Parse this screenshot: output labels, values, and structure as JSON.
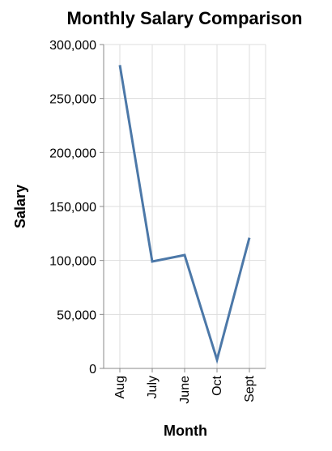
{
  "chart_data": {
    "type": "line",
    "title": "Monthly Salary Comparison",
    "xlabel": "Month",
    "ylabel": "Salary",
    "categories": [
      "Aug",
      "July",
      "June",
      "Oct",
      "Sept"
    ],
    "values": [
      281000,
      99000,
      105000,
      8000,
      121000
    ],
    "ylim": [
      0,
      300000
    ],
    "yticks": [
      0,
      50000,
      100000,
      150000,
      200000,
      250000,
      300000
    ],
    "ytick_labels": [
      "0",
      "50,000",
      "100,000",
      "150,000",
      "200,000",
      "250,000",
      "300,000"
    ],
    "grid": true,
    "line_color": "#4c78a8"
  }
}
